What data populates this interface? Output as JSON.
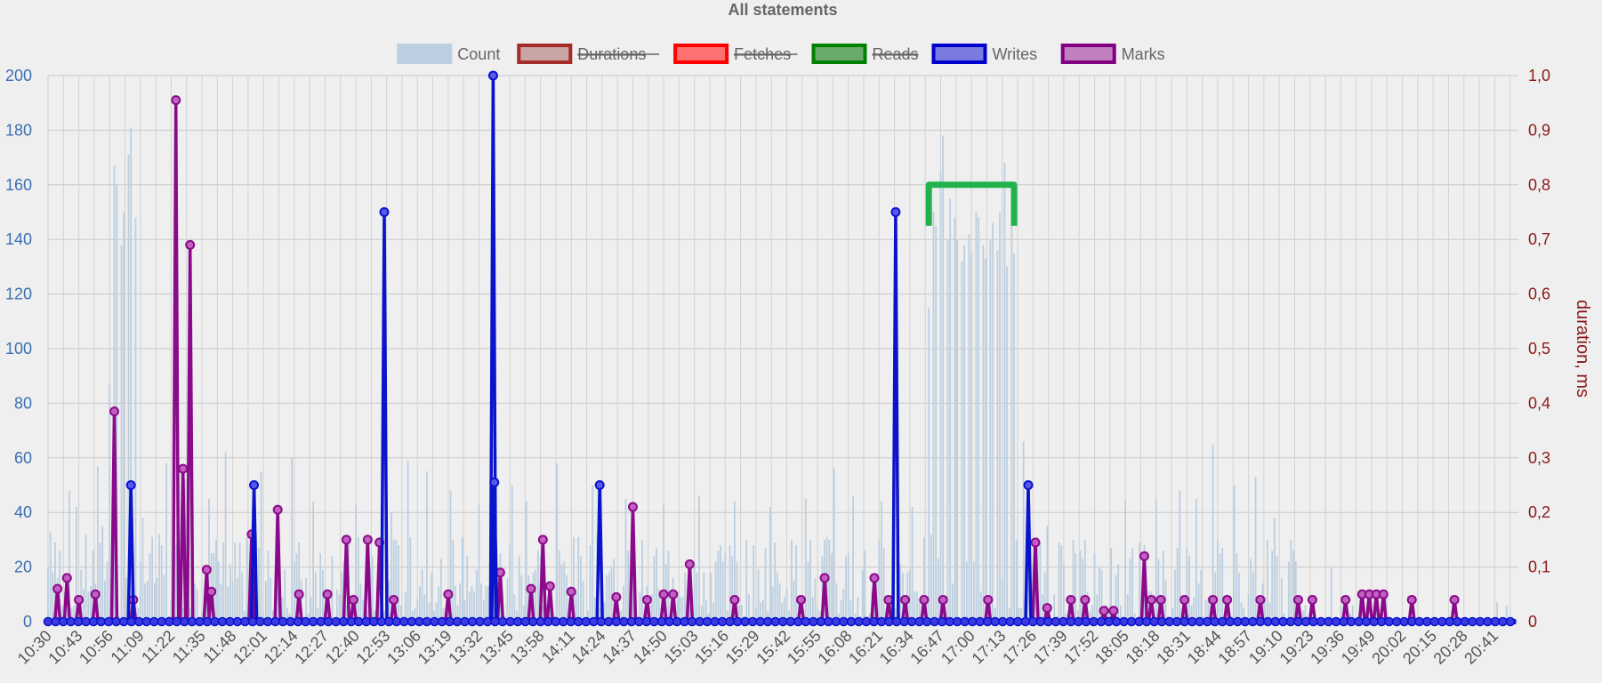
{
  "chart_data": {
    "type": "bar+line",
    "title": "All statements",
    "y_left": {
      "min": 0,
      "max": 200,
      "ticks": [
        0,
        20,
        40,
        60,
        80,
        100,
        120,
        140,
        160,
        180,
        200
      ]
    },
    "y_right": {
      "label": "duration, ms",
      "min": 0,
      "max": 1.0,
      "ticks": [
        "0",
        "0,1",
        "0,2",
        "0,3",
        "0,4",
        "0,5",
        "0,6",
        "0,7",
        "0,8",
        "0,9",
        "1,0"
      ]
    },
    "x_ticks": [
      "10:30",
      "10:43",
      "10:56",
      "11:09",
      "11:22",
      "11:35",
      "11:48",
      "12:01",
      "12:14",
      "12:27",
      "12:40",
      "12:53",
      "13:06",
      "13:19",
      "13:32",
      "13:45",
      "13:58",
      "14:11",
      "14:24",
      "14:37",
      "14:50",
      "15:03",
      "15:16",
      "15:29",
      "15:42",
      "15:55",
      "16:08",
      "16:21",
      "16:34",
      "16:47",
      "17:00",
      "17:13",
      "17:26",
      "17:39",
      "17:52",
      "18:05",
      "18:18",
      "18:31",
      "18:44",
      "18:57",
      "19:10",
      "19:23",
      "19:36",
      "19:49",
      "20:02",
      "20:15",
      "20:28",
      "20:41"
    ],
    "x_range_minutes": [
      630,
      1251
    ],
    "legend": [
      {
        "name": "Count",
        "fill": "#bccfe0",
        "stroke": "#bccfe0",
        "hidden": false
      },
      {
        "name": "Durations",
        "fill": "#c9a5a5",
        "stroke": "#a52a2a",
        "hidden": true
      },
      {
        "name": "Fetches",
        "fill": "#ff7070",
        "stroke": "#ff0000",
        "hidden": true
      },
      {
        "name": "Reads",
        "fill": "#6aaa6a",
        "stroke": "#008000",
        "hidden": true
      },
      {
        "name": "Writes",
        "fill": "#7a7ae0",
        "stroke": "#0000cc",
        "hidden": false
      },
      {
        "name": "Marks",
        "fill": "#c080c0",
        "stroke": "#800080",
        "hidden": false
      }
    ],
    "count_bursts": [
      {
        "t": 656,
        "values": [
          87,
          167,
          160,
          138,
          150,
          171,
          181,
          148
        ]
      },
      {
        "t": 1002,
        "values": [
          115,
          150,
          145,
          165,
          178,
          140,
          155,
          148,
          140,
          132,
          138,
          142,
          135,
          150,
          148,
          138,
          133,
          140,
          146,
          136,
          150,
          168,
          130,
          160,
          135
        ]
      }
    ],
    "count_peaks": [
      {
        "t": 631,
        "v": 33
      },
      {
        "t": 639,
        "v": 48
      },
      {
        "t": 642,
        "v": 42
      },
      {
        "t": 651,
        "v": 57
      },
      {
        "t": 653,
        "v": 35
      },
      {
        "t": 670,
        "v": 38
      },
      {
        "t": 680,
        "v": 58
      },
      {
        "t": 688,
        "v": 52
      },
      {
        "t": 698,
        "v": 45
      },
      {
        "t": 705,
        "v": 62
      },
      {
        "t": 720,
        "v": 55
      },
      {
        "t": 733,
        "v": 60
      },
      {
        "t": 742,
        "v": 44
      },
      {
        "t": 760,
        "v": 43
      },
      {
        "t": 775,
        "v": 40
      },
      {
        "t": 782,
        "v": 59
      },
      {
        "t": 790,
        "v": 55
      },
      {
        "t": 800,
        "v": 48
      },
      {
        "t": 812,
        "v": 43
      },
      {
        "t": 826,
        "v": 50
      },
      {
        "t": 832,
        "v": 44
      },
      {
        "t": 845,
        "v": 58
      },
      {
        "t": 860,
        "v": 50
      },
      {
        "t": 874,
        "v": 45
      },
      {
        "t": 890,
        "v": 43
      },
      {
        "t": 905,
        "v": 46
      },
      {
        "t": 920,
        "v": 44
      },
      {
        "t": 935,
        "v": 42
      },
      {
        "t": 950,
        "v": 45
      },
      {
        "t": 962,
        "v": 56
      },
      {
        "t": 970,
        "v": 46
      },
      {
        "t": 982,
        "v": 44
      },
      {
        "t": 995,
        "v": 42
      },
      {
        "t": 1042,
        "v": 66
      },
      {
        "t": 1052,
        "v": 35
      },
      {
        "t": 1068,
        "v": 30
      },
      {
        "t": 1085,
        "v": 44
      },
      {
        "t": 1098,
        "v": 45
      },
      {
        "t": 1108,
        "v": 48
      },
      {
        "t": 1115,
        "v": 45
      },
      {
        "t": 1122,
        "v": 65
      },
      {
        "t": 1131,
        "v": 50
      },
      {
        "t": 1140,
        "v": 53
      },
      {
        "t": 1148,
        "v": 38
      },
      {
        "t": 1172,
        "v": 20
      },
      {
        "t": 1242,
        "v": 7
      },
      {
        "t": 1246,
        "v": 6
      }
    ],
    "writes": [
      {
        "t": 630,
        "v": 0
      },
      {
        "t": 665,
        "v": 50
      },
      {
        "t": 717,
        "v": 50
      },
      {
        "t": 772,
        "v": 150
      },
      {
        "t": 818,
        "v": 200
      },
      {
        "t": 818.5,
        "v": 51
      },
      {
        "t": 863,
        "v": 50
      },
      {
        "t": 988,
        "v": 150
      },
      {
        "t": 1044,
        "v": 50
      },
      {
        "t": 1250,
        "v": 0
      }
    ],
    "marks": [
      {
        "t": 634,
        "v": 12
      },
      {
        "t": 638,
        "v": 16
      },
      {
        "t": 643,
        "v": 8
      },
      {
        "t": 650,
        "v": 10
      },
      {
        "t": 658,
        "v": 77
      },
      {
        "t": 666,
        "v": 8
      },
      {
        "t": 684,
        "v": 191
      },
      {
        "t": 687,
        "v": 56
      },
      {
        "t": 690,
        "v": 138
      },
      {
        "t": 697,
        "v": 19
      },
      {
        "t": 699,
        "v": 11
      },
      {
        "t": 716,
        "v": 32
      },
      {
        "t": 727,
        "v": 41
      },
      {
        "t": 736,
        "v": 10
      },
      {
        "t": 748,
        "v": 10
      },
      {
        "t": 756,
        "v": 30
      },
      {
        "t": 759,
        "v": 8
      },
      {
        "t": 765,
        "v": 30
      },
      {
        "t": 770,
        "v": 29
      },
      {
        "t": 776,
        "v": 8
      },
      {
        "t": 799,
        "v": 10
      },
      {
        "t": 821,
        "v": 18
      },
      {
        "t": 834,
        "v": 12
      },
      {
        "t": 839,
        "v": 30
      },
      {
        "t": 842,
        "v": 13
      },
      {
        "t": 851,
        "v": 11
      },
      {
        "t": 870,
        "v": 9
      },
      {
        "t": 877,
        "v": 42
      },
      {
        "t": 883,
        "v": 8
      },
      {
        "t": 890,
        "v": 10
      },
      {
        "t": 894,
        "v": 10
      },
      {
        "t": 901,
        "v": 21
      },
      {
        "t": 920,
        "v": 8
      },
      {
        "t": 948,
        "v": 8
      },
      {
        "t": 958,
        "v": 16
      },
      {
        "t": 979,
        "v": 16
      },
      {
        "t": 985,
        "v": 8
      },
      {
        "t": 992,
        "v": 8
      },
      {
        "t": 1000,
        "v": 8
      },
      {
        "t": 1008,
        "v": 8
      },
      {
        "t": 1027,
        "v": 8
      },
      {
        "t": 1047,
        "v": 29
      },
      {
        "t": 1052,
        "v": 5
      },
      {
        "t": 1062,
        "v": 8
      },
      {
        "t": 1068,
        "v": 8
      },
      {
        "t": 1076,
        "v": 4
      },
      {
        "t": 1080,
        "v": 4
      },
      {
        "t": 1093,
        "v": 24
      },
      {
        "t": 1096,
        "v": 8
      },
      {
        "t": 1100,
        "v": 8
      },
      {
        "t": 1110,
        "v": 8
      },
      {
        "t": 1122,
        "v": 8
      },
      {
        "t": 1128,
        "v": 8
      },
      {
        "t": 1142,
        "v": 8
      },
      {
        "t": 1158,
        "v": 8
      },
      {
        "t": 1164,
        "v": 8
      },
      {
        "t": 1178,
        "v": 8
      },
      {
        "t": 1185,
        "v": 10
      },
      {
        "t": 1188,
        "v": 10
      },
      {
        "t": 1191,
        "v": 10
      },
      {
        "t": 1194,
        "v": 10
      },
      {
        "t": 1206,
        "v": 8
      },
      {
        "t": 1224,
        "v": 8
      }
    ],
    "reads_overlay": {
      "t_start": 1002,
      "t_end": 1038,
      "v": 160,
      "v_bottom": 145,
      "color": "#22b24c"
    },
    "grid": true,
    "legend_position": "top-center",
    "colors": {
      "count": "#bccfe0",
      "writes": "#0a14cc",
      "marks": "#8b0a8b",
      "left_axis": "#3a6fb0",
      "right_axis": "#8b1a1a"
    }
  }
}
